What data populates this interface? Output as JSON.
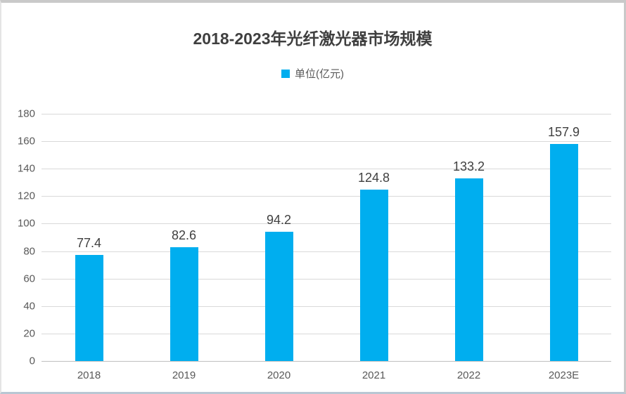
{
  "chart_data": {
    "type": "bar",
    "title": "2018-2023年光纤激光器市场规模",
    "legend": [
      "单位(亿元)"
    ],
    "legend_position": "top",
    "categories": [
      "2018",
      "2019",
      "2020",
      "2021",
      "2022",
      "2023E"
    ],
    "values": [
      77.4,
      82.6,
      94.2,
      124.8,
      133.2,
      157.9
    ],
    "data_labels": [
      "77.4",
      "82.6",
      "94.2",
      "124.8",
      "133.2",
      "157.9"
    ],
    "xlabel": "",
    "ylabel": "",
    "ylim": [
      0,
      180
    ],
    "yticks": [
      0,
      20,
      40,
      60,
      80,
      100,
      120,
      140,
      160,
      180
    ],
    "grid": true,
    "colors": {
      "bar": "#00AEEF",
      "gridline": "#D9D9D9",
      "axis_line": "#BFBFBF",
      "title_text": "#3F3F3F",
      "tick_label": "#595959",
      "data_label": "#404040"
    }
  }
}
